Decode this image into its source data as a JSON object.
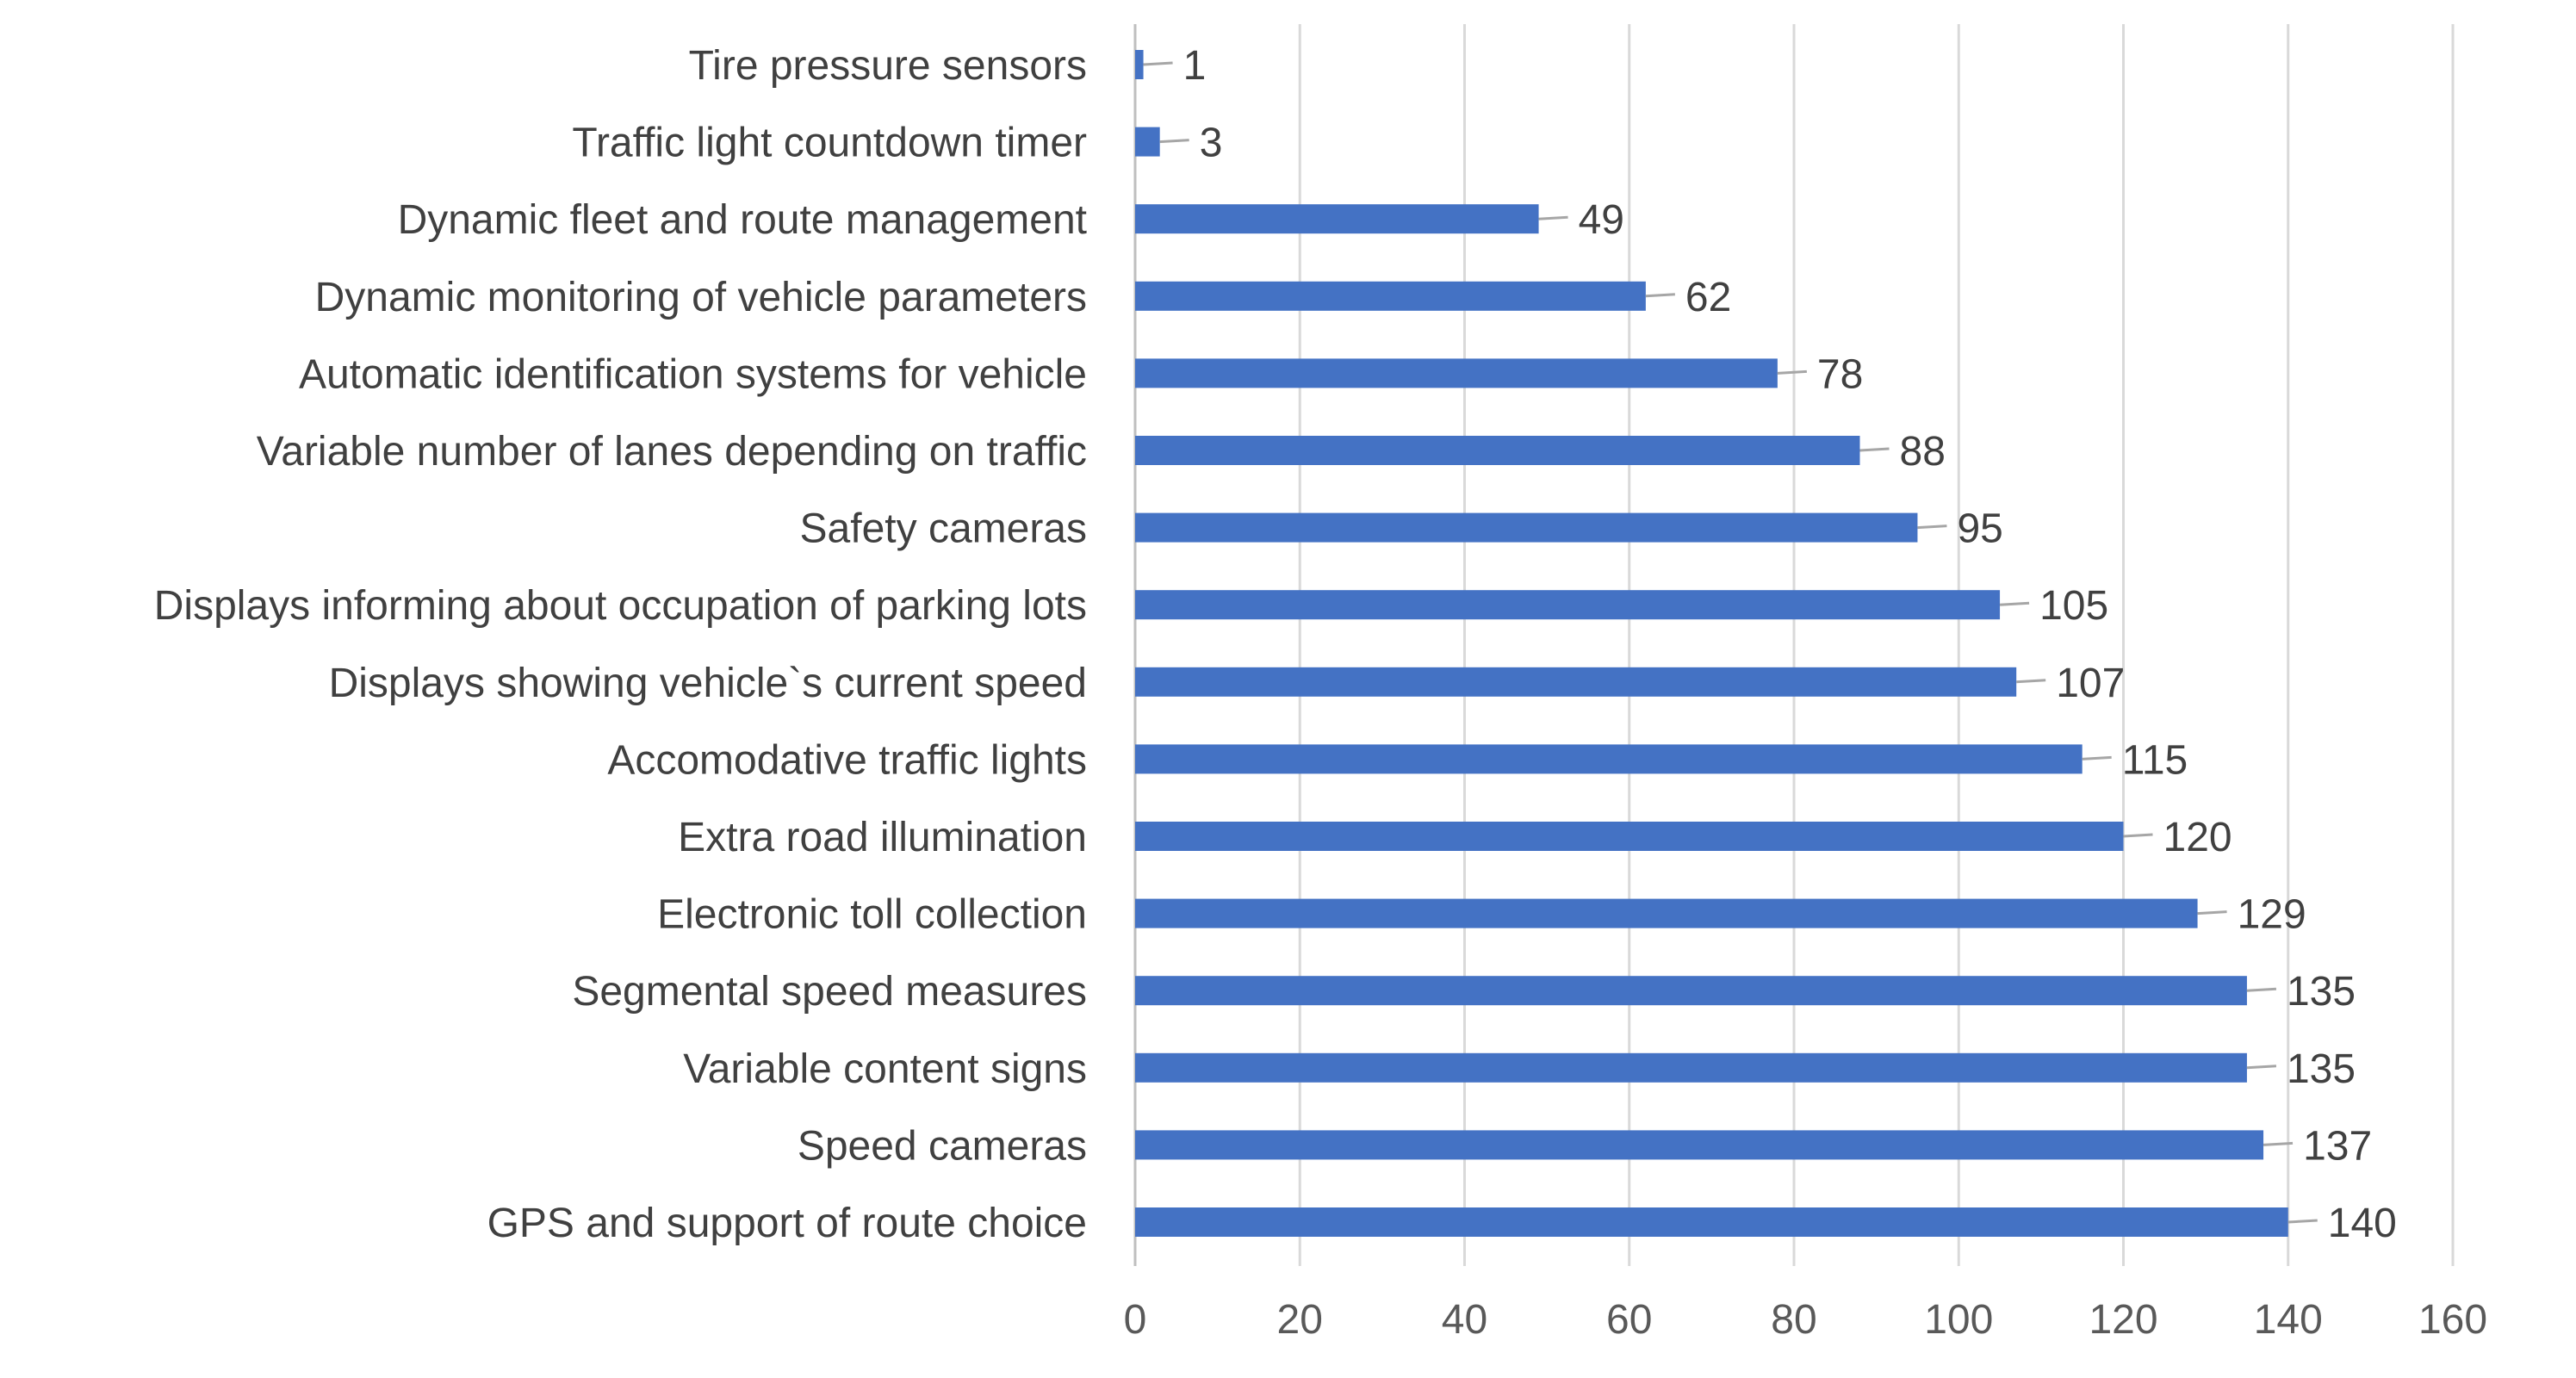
{
  "chart_data": {
    "type": "bar",
    "orientation": "horizontal",
    "title": "",
    "xlabel": "",
    "ylabel": "",
    "categories": [
      "Tire pressure sensors",
      "Traffic light countdown timer",
      "Dynamic fleet and route management",
      "Dynamic monitoring of vehicle parameters",
      "Automatic identification systems for vehicle",
      "Variable number of lanes depending on traffic",
      "Safety cameras",
      "Displays informing about occupation of parking lots",
      "Displays showing vehicle`s current speed",
      "Accomodative traffic lights",
      "Extra road illumination",
      "Electronic toll collection",
      "Segmental speed measures",
      "Variable content signs",
      "Speed cameras",
      "GPS and support of route choice"
    ],
    "values": [
      1,
      3,
      49,
      62,
      78,
      88,
      95,
      105,
      107,
      115,
      120,
      129,
      135,
      135,
      137,
      140
    ],
    "data_labels": [
      "1",
      "3",
      "49",
      "62",
      "78",
      "88",
      "95",
      "105",
      "107",
      "115",
      "120",
      "129",
      "135",
      "135",
      "137",
      "140"
    ],
    "xlim": [
      0,
      160
    ],
    "ticks": [
      0,
      20,
      40,
      60,
      80,
      100,
      120,
      140,
      160
    ],
    "tick_labels": [
      "0",
      "20",
      "40",
      "60",
      "80",
      "100",
      "120",
      "140",
      "160"
    ],
    "grid": true,
    "legend": "none",
    "colors": {
      "bar": "#4472C4",
      "grid": "#D9D9D9",
      "axis": "#BFBFBF",
      "leader": "#A6A6A6",
      "text": "#404040"
    }
  }
}
